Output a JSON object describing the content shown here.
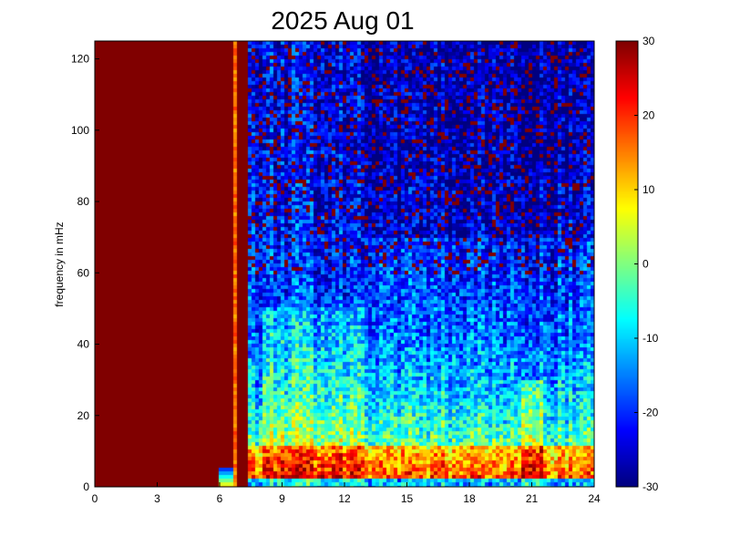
{
  "chart_data": {
    "type": "heatmap",
    "title": "2025 Aug 01",
    "xlabel": "",
    "ylabel": "frequency in mHz",
    "xlim": [
      0,
      24
    ],
    "ylim": [
      0,
      125
    ],
    "x_ticks": [
      0,
      3,
      6,
      9,
      12,
      15,
      18,
      21,
      24
    ],
    "y_ticks": [
      0,
      20,
      40,
      60,
      80,
      100,
      120
    ],
    "colorbar": {
      "colormap": "jet",
      "range": [
        -30,
        30
      ],
      "ticks": [
        30,
        20,
        10,
        0,
        -10,
        -20,
        -30
      ]
    },
    "colors": {
      "saturated_high": "#800000",
      "saturated_low": "#00008f"
    }
  }
}
